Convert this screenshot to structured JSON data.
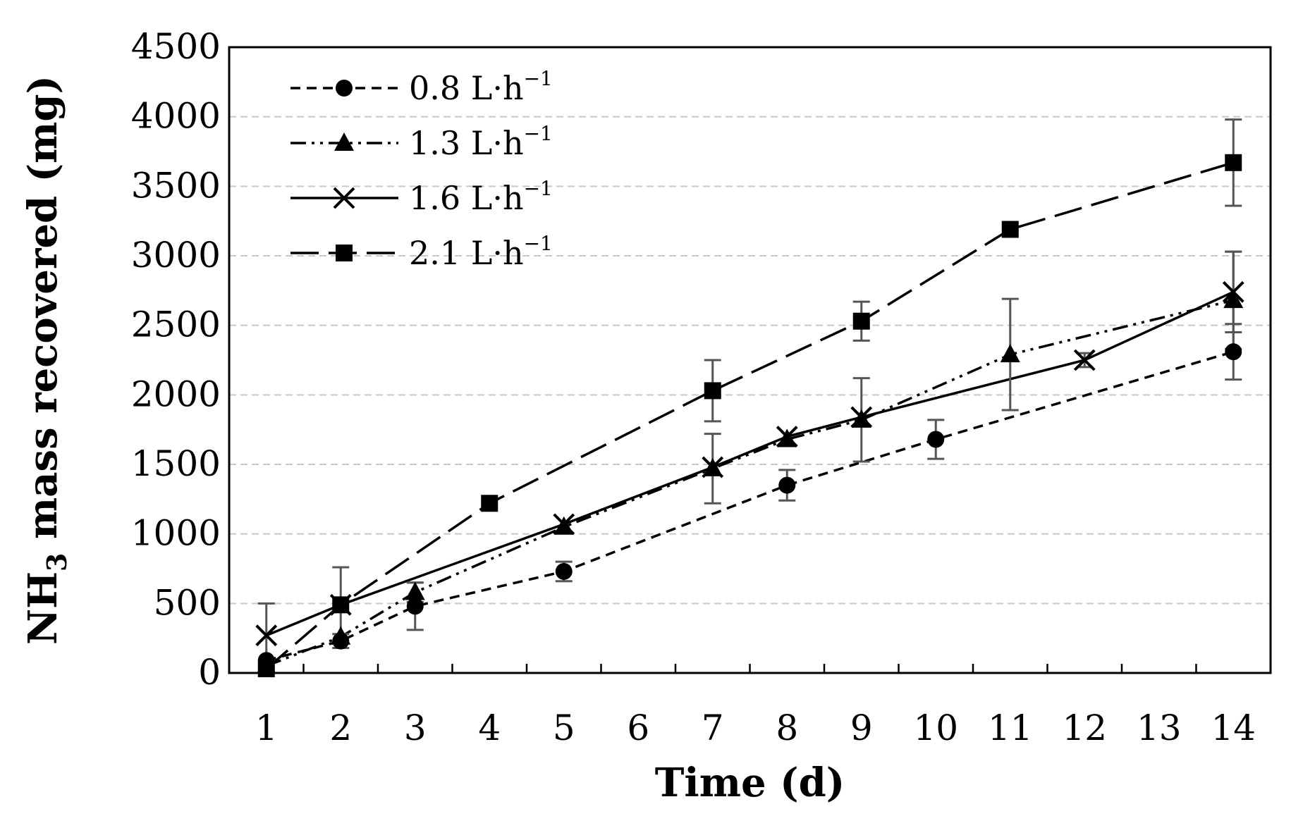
{
  "chart_data": {
    "type": "line",
    "title": "",
    "xlabel": "Time (d)",
    "ylabel": "NH3 mass recovered (mg)",
    "ylabel_main": "NH",
    "ylabel_sub": "3",
    "ylabel_rest": " mass recovered (mg)",
    "categories": [
      "1",
      "2",
      "3",
      "4",
      "5",
      "6",
      "7",
      "8",
      "9",
      "10",
      "11",
      "12",
      "13",
      "14"
    ],
    "ylim": [
      0,
      4500
    ],
    "yticks": [
      0,
      500,
      1000,
      1500,
      2000,
      2500,
      3000,
      3500,
      4000,
      4500
    ],
    "ytick_labels": [
      "0",
      "500",
      "1000",
      "1500",
      "2000",
      "2500",
      "3000",
      "3500",
      "4000",
      "4500"
    ],
    "grid": true,
    "legend_position": "top-left",
    "unit_suffix": "−1",
    "series": [
      {
        "name": "0.8 L·h",
        "marker": "circle",
        "line_style": "dashed",
        "points": [
          {
            "x": "1",
            "y": 90,
            "err": null
          },
          {
            "x": "2",
            "y": 230,
            "err": 50
          },
          {
            "x": "3",
            "y": 480,
            "err": 170
          },
          {
            "x": "5",
            "y": 730,
            "err": 70
          },
          {
            "x": "8",
            "y": 1350,
            "err": 110
          },
          {
            "x": "10",
            "y": 1680,
            "err": 140
          },
          {
            "x": "14",
            "y": 2310,
            "err": 200
          }
        ]
      },
      {
        "name": "1.3 L·h",
        "marker": "triangle",
        "line_style": "dash-dot-dot",
        "points": [
          {
            "x": "1",
            "y": 50,
            "err": null
          },
          {
            "x": "2",
            "y": 260,
            "err": null
          },
          {
            "x": "3",
            "y": 580,
            "err": 70
          },
          {
            "x": "5",
            "y": 1050,
            "err": null
          },
          {
            "x": "7",
            "y": 1470,
            "err": 250
          },
          {
            "x": "8",
            "y": 1680,
            "err": null
          },
          {
            "x": "9",
            "y": 1820,
            "err": 300
          },
          {
            "x": "11",
            "y": 2290,
            "err": 400
          },
          {
            "x": "14",
            "y": 2680,
            "err": 350
          }
        ]
      },
      {
        "name": "1.6 L·h",
        "marker": "x",
        "line_style": "solid",
        "points": [
          {
            "x": "1",
            "y": 270,
            "err": 230
          },
          {
            "x": "2",
            "y": 490,
            "err": null
          },
          {
            "x": "5",
            "y": 1070,
            "err": null
          },
          {
            "x": "7",
            "y": 1480,
            "err": null
          },
          {
            "x": "8",
            "y": 1700,
            "err": null
          },
          {
            "x": "9",
            "y": 1840,
            "err": null
          },
          {
            "x": "12",
            "y": 2250,
            "err": 50
          },
          {
            "x": "14",
            "y": 2740,
            "err": 290
          }
        ]
      },
      {
        "name": "2.1 L·h",
        "marker": "square",
        "line_style": "long-dash",
        "points": [
          {
            "x": "1",
            "y": 30,
            "err": null
          },
          {
            "x": "2",
            "y": 490,
            "err": 270
          },
          {
            "x": "4",
            "y": 1220,
            "err": null
          },
          {
            "x": "7",
            "y": 2030,
            "err": 220
          },
          {
            "x": "9",
            "y": 2530,
            "err": 140
          },
          {
            "x": "11",
            "y": 3190,
            "err": null
          },
          {
            "x": "14",
            "y": 3670,
            "err": 310
          }
        ]
      }
    ]
  }
}
